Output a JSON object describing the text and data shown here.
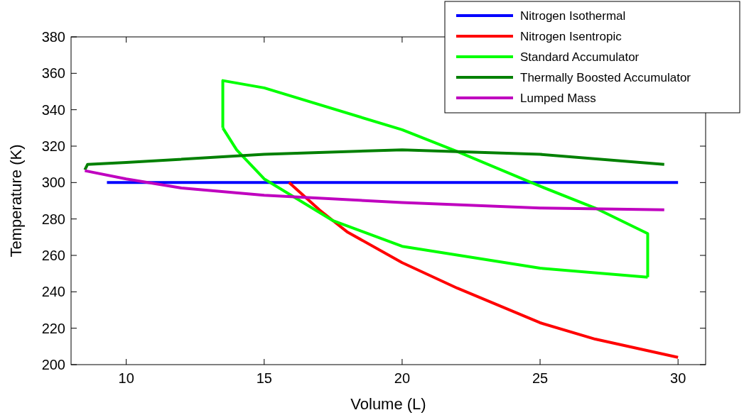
{
  "chart_data": {
    "type": "line",
    "xlabel": "Volume (L)",
    "ylabel": "Temperature (K)",
    "xlim": [
      8,
      31
    ],
    "ylim": [
      200,
      380
    ],
    "xticks": [
      10,
      15,
      20,
      25,
      30
    ],
    "yticks": [
      200,
      220,
      240,
      260,
      280,
      300,
      320,
      340,
      360,
      380
    ],
    "grid": false,
    "legend": "top right",
    "line_style": "solid",
    "series": [
      {
        "name": "Nitrogen Isothermal",
        "color": "#0000ff",
        "x": [
          9.3,
          30
        ],
        "values": [
          300,
          300
        ]
      },
      {
        "name": "Nitrogen Isentropic",
        "color": "#ff0000",
        "x": [
          15.9,
          17,
          17.5,
          18,
          20,
          22,
          25,
          27,
          30
        ],
        "values": [
          300,
          285,
          279,
          273,
          256,
          242,
          223,
          214,
          204
        ]
      },
      {
        "name": "Standard Accumulator",
        "color": "#00ff00",
        "x": [
          13.5,
          13.5,
          15,
          20,
          22,
          25,
          27,
          28.9,
          28.9
        ],
        "values": [
          330,
          356,
          352,
          329,
          317,
          298,
          286,
          272,
          248
        ]
      },
      {
        "color": "#00ff00",
        "x": [
          13.5,
          14,
          15,
          17.5,
          20,
          25,
          28.9
        ],
        "values": [
          330,
          318,
          302,
          279,
          265,
          253,
          248
        ]
      },
      {
        "name": "Thermally Boosted Accumulator",
        "color": "#008000",
        "x": [
          8.5,
          8.6,
          10,
          15,
          20,
          25,
          29.5
        ],
        "values": [
          307,
          310,
          311,
          315.5,
          318,
          315.5,
          310
        ]
      },
      {
        "name": "Lumped Mass",
        "color": "#bf00bf",
        "x": [
          8.5,
          10,
          12,
          15,
          20,
          25,
          29.5
        ],
        "values": [
          306.5,
          302,
          297,
          293,
          289,
          286,
          285
        ]
      }
    ]
  }
}
